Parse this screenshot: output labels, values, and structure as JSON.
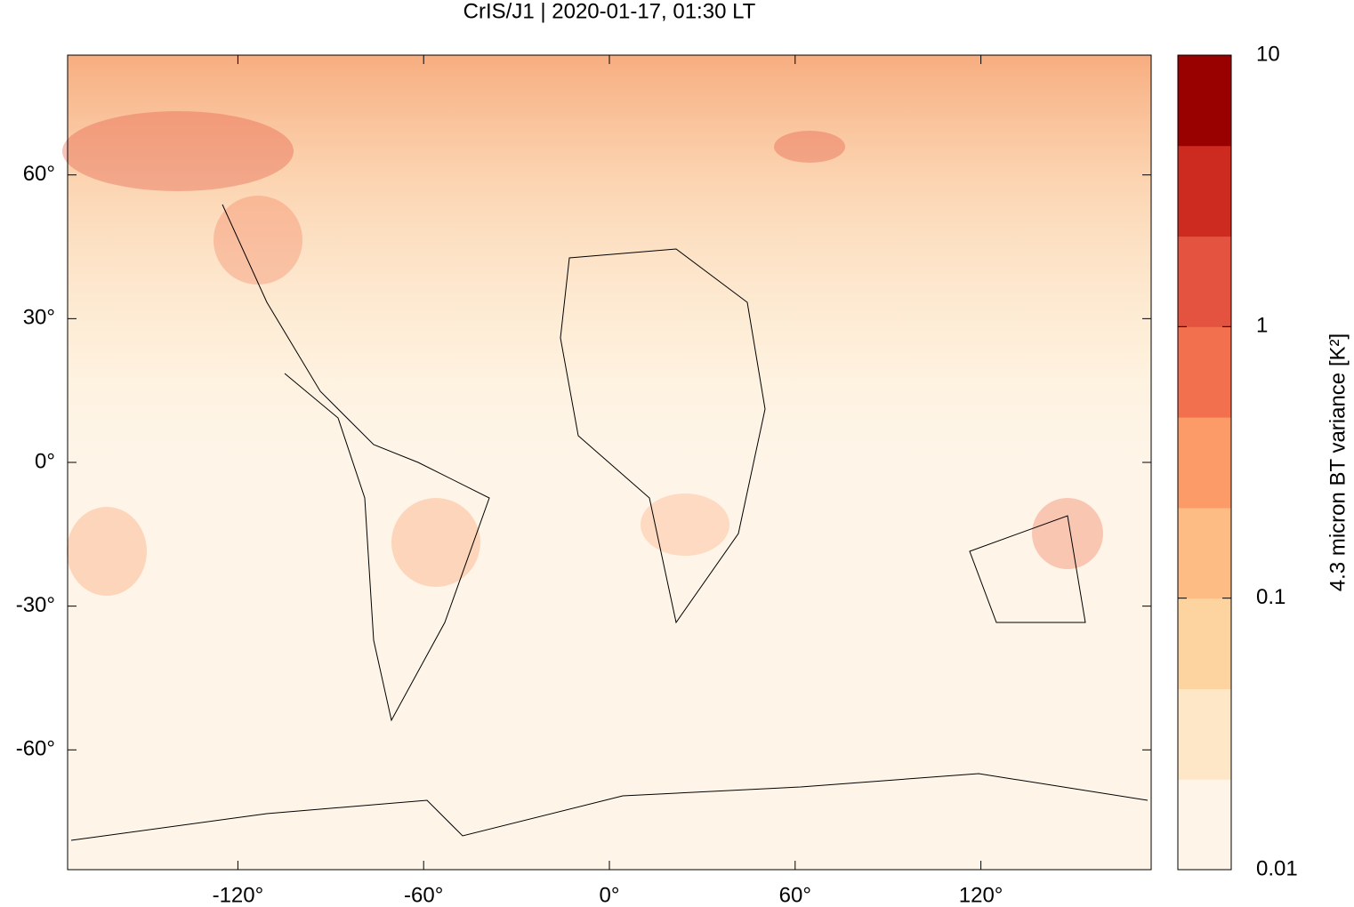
{
  "chart_data": {
    "type": "map",
    "title": "CrIS/J1 | 2020-01-17, 01:30 LT",
    "xlim": [
      -175,
      175
    ],
    "xticks": [
      {
        "value": -120,
        "label": "-120°"
      },
      {
        "value": -60,
        "label": "-60°"
      },
      {
        "value": 0,
        "label": "0°"
      },
      {
        "value": 60,
        "label": "60°"
      },
      {
        "value": 120,
        "label": "120°"
      }
    ],
    "ylim": [
      -85,
      85
    ],
    "yticks": [
      {
        "value": -60,
        "label": "-60°"
      },
      {
        "value": -30,
        "label": "-30°"
      },
      {
        "value": 0,
        "label": "0°"
      },
      {
        "value": 30,
        "label": "30°"
      },
      {
        "value": 60,
        "label": "60°"
      }
    ],
    "colorbar": {
      "label": "4.3 micron BT variance [K²]",
      "log": true,
      "lim": [
        0.01,
        10
      ],
      "ticks": [
        0.01,
        0.1,
        1,
        10
      ],
      "colors": [
        "#fef5e8",
        "#fde7c7",
        "#fdd3a0",
        "#fdbc84",
        "#fc9a68",
        "#f2704d",
        "#e3533f",
        "#cd2b20",
        "#990000"
      ]
    }
  }
}
